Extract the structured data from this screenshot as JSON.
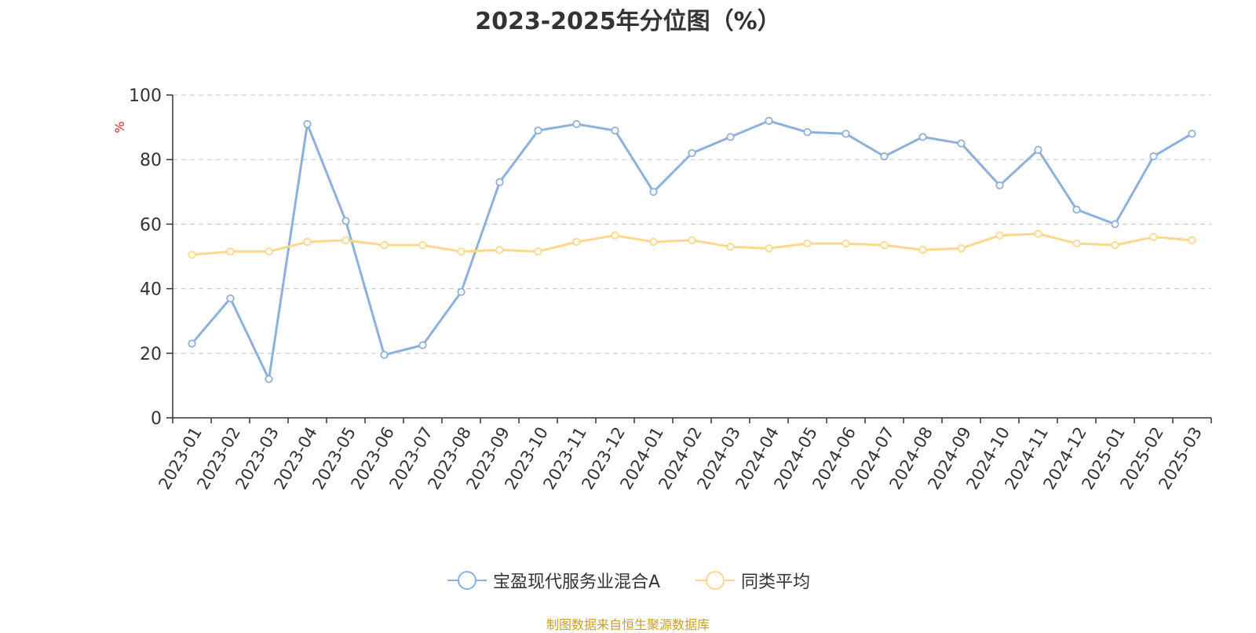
{
  "chart_data": {
    "type": "line",
    "title": "2023-2025年分位图（%）",
    "ylabel": "%",
    "xlabel": "",
    "ylim": [
      0,
      100
    ],
    "yticks": [
      "0",
      "20",
      "40",
      "60",
      "80",
      "100"
    ],
    "grid": "horizontal dashed",
    "legend_placement": "bottom-center",
    "categories": [
      "2023-01",
      "2023-02",
      "2023-03",
      "2023-04",
      "2023-05",
      "2023-06",
      "2023-07",
      "2023-08",
      "2023-09",
      "2023-10",
      "2023-11",
      "2023-12",
      "2024-01",
      "2024-02",
      "2024-03",
      "2024-04",
      "2024-05",
      "2024-06",
      "2024-07",
      "2024-08",
      "2024-09",
      "2024-10",
      "2024-11",
      "2024-12",
      "2025-01",
      "2025-02",
      "2025-03"
    ],
    "series": [
      {
        "name": "宝盈现代服务业混合A",
        "color": "#8eb0dc",
        "values": [
          23,
          37,
          12,
          91,
          61,
          19.5,
          22.5,
          39,
          73,
          89,
          91,
          89,
          70,
          82,
          87,
          92,
          88.5,
          88,
          81,
          87,
          85,
          72,
          83,
          64.5,
          60,
          81,
          88
        ]
      },
      {
        "name": "同类平均",
        "color": "#fdd78b",
        "values": [
          50.5,
          51.5,
          51.5,
          54.5,
          55,
          53.5,
          53.5,
          51.5,
          52,
          51.5,
          54.5,
          56.5,
          54.5,
          55,
          53,
          52.5,
          54,
          54,
          53.5,
          52,
          52.5,
          56.5,
          57,
          54,
          53.5,
          56,
          55
        ]
      }
    ]
  },
  "source_note": "制图数据来自恒生聚源数据库",
  "colors": {
    "axis": "#333333",
    "grid": "#cccccc",
    "ylabel": "#e02020",
    "source": "#c8a028"
  }
}
